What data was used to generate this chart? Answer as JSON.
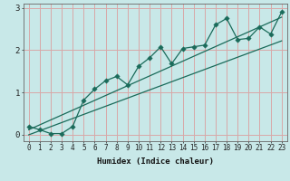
{
  "xlabel": "Humidex (Indice chaleur)",
  "bg_color": "#c8e8e8",
  "grid_color": "#d8a8a8",
  "line_color": "#1a6b5a",
  "xlim": [
    -0.5,
    23.5
  ],
  "ylim": [
    -0.15,
    3.1
  ],
  "xticks": [
    0,
    1,
    2,
    3,
    4,
    5,
    6,
    7,
    8,
    9,
    10,
    11,
    12,
    13,
    14,
    15,
    16,
    17,
    18,
    19,
    20,
    21,
    22,
    23
  ],
  "yticks": [
    0,
    1,
    2,
    3
  ],
  "line1_x": [
    0,
    1,
    2,
    3,
    4,
    5,
    6,
    7,
    8,
    9,
    10,
    11,
    12,
    13,
    14,
    15,
    16,
    17,
    18,
    19,
    20,
    21,
    22,
    23
  ],
  "line1_y": [
    0.2,
    0.12,
    0.03,
    0.03,
    0.2,
    0.82,
    1.08,
    1.28,
    1.38,
    1.18,
    1.62,
    1.82,
    2.08,
    1.68,
    2.04,
    2.08,
    2.12,
    2.6,
    2.75,
    2.25,
    2.28,
    2.55,
    2.38,
    2.9
  ],
  "line2_x": [
    0,
    23
  ],
  "line2_y": [
    0.12,
    2.78
  ],
  "line3_x": [
    0,
    23
  ],
  "line3_y": [
    0.0,
    2.22
  ],
  "marker_size": 2.8,
  "line_width": 0.9,
  "tick_fontsize": 5.5,
  "xlabel_fontsize": 6.5
}
